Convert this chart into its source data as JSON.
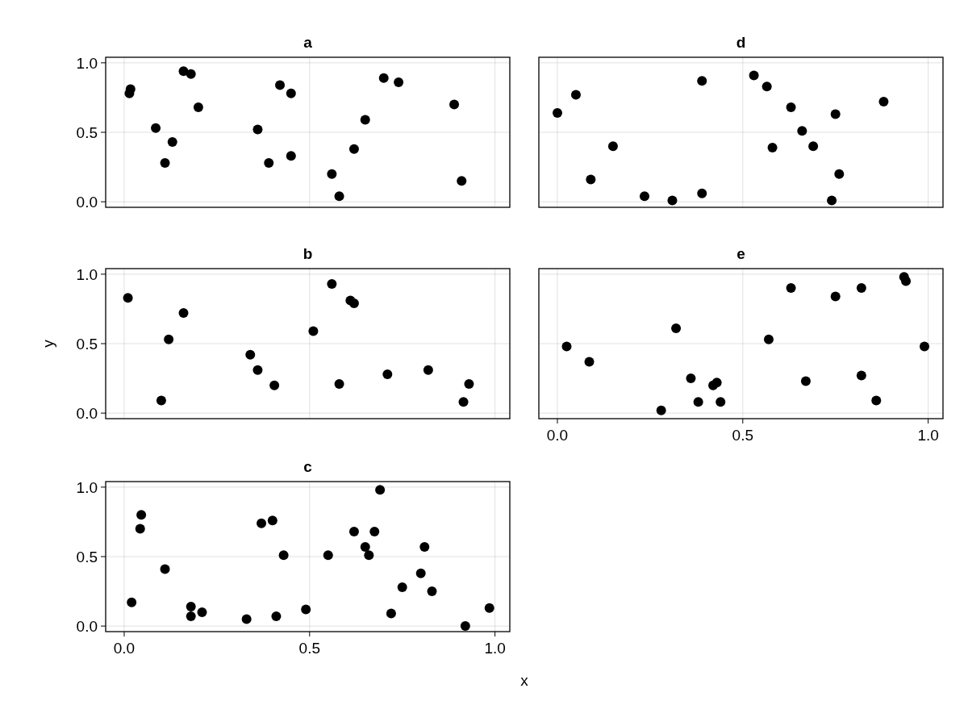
{
  "chart_data": [
    {
      "type": "scatter",
      "title": "a",
      "tick_labels": "y",
      "grid": true,
      "marker": "circle",
      "xlim": [
        -0.05,
        1.04
      ],
      "ylim": [
        -0.04,
        1.04
      ],
      "xticks": [
        {
          "value": 0,
          "label": null
        },
        {
          "value": 0.5,
          "label": null
        },
        {
          "value": 1,
          "label": null
        }
      ],
      "yticks": [
        {
          "value": 0,
          "label": "0.0"
        },
        {
          "value": 0.5,
          "label": "0.5"
        },
        {
          "value": 1,
          "label": "1.0"
        }
      ],
      "series": [
        {
          "color": "#000000",
          "x": [
            0.014,
            0.017,
            0.085,
            0.11,
            0.13,
            0.16,
            0.18,
            0.2,
            0.36,
            0.39,
            0.42,
            0.45,
            0.45,
            0.56,
            0.58,
            0.62,
            0.65,
            0.7,
            0.74,
            0.89,
            0.91
          ],
          "values": [
            0.78,
            0.81,
            0.53,
            0.28,
            0.43,
            0.94,
            0.92,
            0.68,
            0.52,
            0.28,
            0.84,
            0.78,
            0.33,
            0.2,
            0.04,
            0.38,
            0.59,
            0.89,
            0.86,
            0.7,
            0.15
          ]
        }
      ]
    },
    {
      "type": "scatter",
      "title": "d",
      "tick_labels": false,
      "grid": true,
      "marker": "circle",
      "xlim": [
        -0.05,
        1.04
      ],
      "ylim": [
        -0.04,
        1.04
      ],
      "xticks": [
        {
          "value": 0,
          "label": null
        },
        {
          "value": 0.5,
          "label": null
        },
        {
          "value": 1,
          "label": null
        }
      ],
      "yticks": [
        {
          "value": 0,
          "label": null
        },
        {
          "value": 0.5,
          "label": null
        },
        {
          "value": 1,
          "label": null
        }
      ],
      "series": [
        {
          "color": "#000000",
          "x": [
            0.0,
            0.05,
            0.09,
            0.15,
            0.235,
            0.31,
            0.39,
            0.39,
            0.53,
            0.565,
            0.58,
            0.63,
            0.66,
            0.69,
            0.74,
            0.75,
            0.76,
            0.88
          ],
          "values": [
            0.64,
            0.77,
            0.16,
            0.4,
            0.04,
            0.01,
            0.06,
            0.87,
            0.91,
            0.83,
            0.39,
            0.68,
            0.51,
            0.4,
            0.01,
            0.63,
            0.2,
            0.72
          ]
        }
      ]
    },
    {
      "type": "scatter",
      "title": "b",
      "ylabel": "y",
      "tick_labels": "y",
      "grid": true,
      "marker": "circle",
      "xlim": [
        -0.05,
        1.04
      ],
      "ylim": [
        -0.04,
        1.04
      ],
      "xticks": [
        {
          "value": 0,
          "label": null
        },
        {
          "value": 0.5,
          "label": null
        },
        {
          "value": 1,
          "label": null
        }
      ],
      "yticks": [
        {
          "value": 0,
          "label": "0.0"
        },
        {
          "value": 0.5,
          "label": "0.5"
        },
        {
          "value": 1,
          "label": "1.0"
        }
      ],
      "series": [
        {
          "color": "#000000",
          "x": [
            0.01,
            0.1,
            0.12,
            0.16,
            0.34,
            0.36,
            0.405,
            0.51,
            0.56,
            0.58,
            0.61,
            0.62,
            0.71,
            0.82,
            0.915,
            0.93
          ],
          "values": [
            0.83,
            0.09,
            0.53,
            0.72,
            0.42,
            0.31,
            0.2,
            0.59,
            0.93,
            0.21,
            0.81,
            0.79,
            0.28,
            0.31,
            0.08,
            0.21
          ]
        }
      ]
    },
    {
      "type": "scatter",
      "title": "e",
      "tick_labels": "x",
      "grid": true,
      "marker": "circle",
      "xlim": [
        -0.05,
        1.04
      ],
      "ylim": [
        -0.04,
        1.04
      ],
      "xticks": [
        {
          "value": 0,
          "label": "0.0"
        },
        {
          "value": 0.5,
          "label": "0.5"
        },
        {
          "value": 1,
          "label": "1.0"
        }
      ],
      "yticks": [
        {
          "value": 0,
          "label": null
        },
        {
          "value": 0.5,
          "label": null
        },
        {
          "value": 1,
          "label": null
        }
      ],
      "series": [
        {
          "color": "#000000",
          "x": [
            0.025,
            0.086,
            0.28,
            0.32,
            0.36,
            0.38,
            0.42,
            0.43,
            0.44,
            0.57,
            0.63,
            0.67,
            0.75,
            0.82,
            0.82,
            0.86,
            0.935,
            0.94,
            0.99
          ],
          "values": [
            0.48,
            0.37,
            0.02,
            0.61,
            0.25,
            0.08,
            0.2,
            0.22,
            0.08,
            0.53,
            0.9,
            0.23,
            0.84,
            0.9,
            0.27,
            0.09,
            0.98,
            0.95,
            0.48
          ]
        }
      ]
    },
    {
      "type": "scatter",
      "title": "c",
      "xlabel": "x",
      "grid": true,
      "marker": "circle",
      "xlim": [
        -0.05,
        1.04
      ],
      "ylim": [
        -0.04,
        1.04
      ],
      "xticks": [
        {
          "value": 0,
          "label": "0.0"
        },
        {
          "value": 0.5,
          "label": "0.5"
        },
        {
          "value": 1,
          "label": "1.0"
        }
      ],
      "yticks": [
        {
          "value": 0,
          "label": "0.0"
        },
        {
          "value": 0.5,
          "label": "0.5"
        },
        {
          "value": 1,
          "label": "1.0"
        }
      ],
      "series": [
        {
          "color": "#000000",
          "x": [
            0.02,
            0.043,
            0.046,
            0.11,
            0.18,
            0.18,
            0.21,
            0.33,
            0.37,
            0.4,
            0.41,
            0.43,
            0.49,
            0.55,
            0.62,
            0.65,
            0.66,
            0.675,
            0.69,
            0.72,
            0.75,
            0.8,
            0.81,
            0.83,
            0.92,
            0.985
          ],
          "values": [
            0.17,
            0.7,
            0.8,
            0.41,
            0.14,
            0.07,
            0.1,
            0.05,
            0.74,
            0.76,
            0.07,
            0.51,
            0.12,
            0.51,
            0.68,
            0.57,
            0.51,
            0.68,
            0.98,
            0.09,
            0.28,
            0.38,
            0.57,
            0.25,
            0.0,
            0.13
          ]
        }
      ]
    }
  ]
}
